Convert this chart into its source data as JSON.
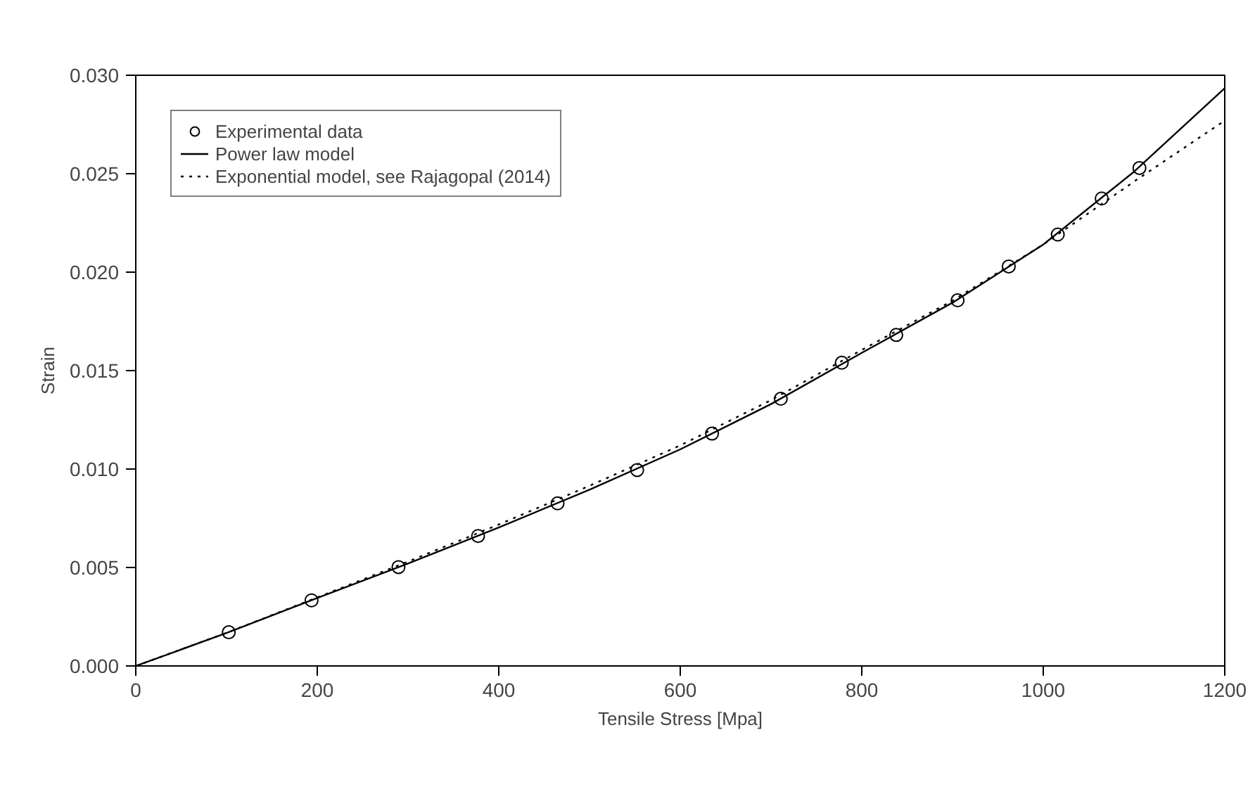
{
  "chart_data": {
    "type": "line",
    "xlabel": "Tensile Stress [Mpa]",
    "ylabel": "Strain",
    "xlim": [
      0,
      1200
    ],
    "xticks": [
      0,
      200,
      400,
      600,
      800,
      1000,
      1200
    ],
    "ylim": [
      0,
      0.03
    ],
    "yticks": [
      {
        "value": 0,
        "label": "0.000"
      },
      {
        "value": 0.005,
        "label": "0.005"
      },
      {
        "value": 0.01,
        "label": "0.010"
      },
      {
        "value": 0.015,
        "label": "0.015"
      },
      {
        "value": 0.02,
        "label": "0.020"
      },
      {
        "value": 0.025,
        "label": "0.025"
      },
      {
        "value": 0.03,
        "label": "0.030"
      }
    ],
    "grid": false,
    "legend": "top left",
    "series": [
      {
        "name": "Experimental data",
        "type": "scatter",
        "marker": "circle",
        "color": "#000000",
        "x": [
          102.5,
          193.7,
          289.5,
          377.2,
          464.8,
          552.5,
          635,
          710.8,
          778,
          838,
          905.6,
          962,
          1016,
          1064.4,
          1106
        ],
        "values": [
          0.00171,
          0.00333,
          0.00502,
          0.0066,
          0.00826,
          0.00995,
          0.0118,
          0.01357,
          0.0154,
          0.01681,
          0.01857,
          0.02029,
          0.02191,
          0.02374,
          0.02529
        ]
      },
      {
        "name": "Power law model",
        "line_style": "solid",
        "color": "#000000",
        "x": [
          0,
          100,
          200,
          300,
          400,
          500,
          600,
          700,
          800,
          900,
          1000,
          1100,
          1200
        ],
        "values": [
          0,
          0.00167,
          0.00345,
          0.0052,
          0.00703,
          0.00895,
          0.011,
          0.0133,
          0.0159,
          0.01845,
          0.0214,
          0.0251,
          0.02934
        ]
      },
      {
        "name": "Exponential model, see Rajagopal (2014)",
        "line_style": "dotted",
        "color": "#000000",
        "x": [
          0,
          100,
          200,
          300,
          400,
          500,
          600,
          700,
          800,
          900,
          1000,
          1100,
          1200
        ],
        "values": [
          0,
          0.00168,
          0.00348,
          0.0053,
          0.00718,
          0.00915,
          0.0112,
          0.0135,
          0.01605,
          0.01855,
          0.0214,
          0.0246,
          0.0277
        ]
      }
    ]
  }
}
